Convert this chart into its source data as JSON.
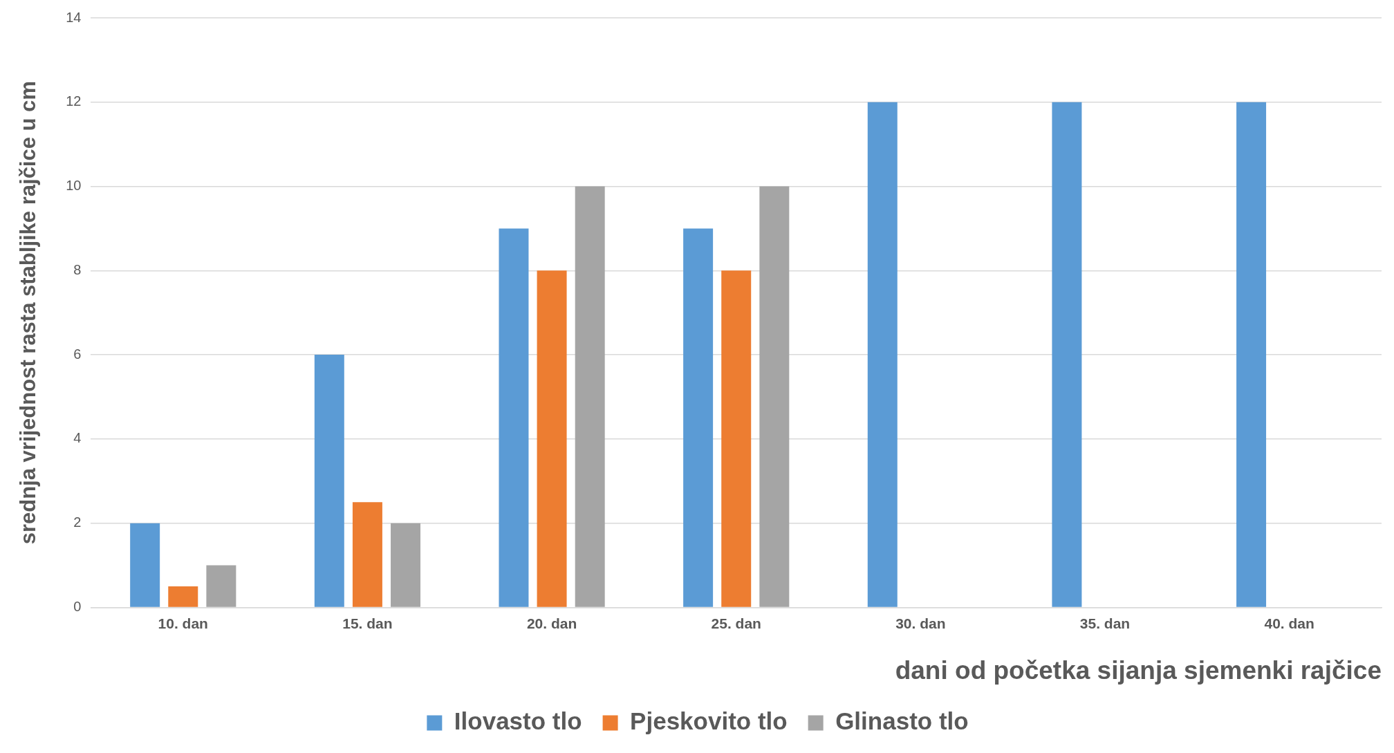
{
  "chart_data": {
    "type": "bar",
    "xlabel": "dani od početka sijanja sjemenki rajčice",
    "ylabel": "srednja vrijednost rasta stabljike rajčice u cm",
    "categories": [
      "10. dan",
      "15. dan",
      "20. dan",
      "25. dan",
      "30. dan",
      "35. dan",
      "40. dan"
    ],
    "series": [
      {
        "name": "Ilovasto tlo",
        "color": "#5b9bd5",
        "values": [
          2,
          6,
          9,
          9,
          12,
          12,
          12
        ]
      },
      {
        "name": "Pjeskovito tlo",
        "color": "#ed7d31",
        "values": [
          0.5,
          2.5,
          8,
          8,
          null,
          null,
          null
        ]
      },
      {
        "name": "Glinasto tlo",
        "color": "#a5a5a5",
        "values": [
          1,
          2,
          10,
          10,
          null,
          null,
          null
        ]
      }
    ],
    "ylim": [
      0,
      14
    ],
    "yticks": [
      0,
      2,
      4,
      6,
      8,
      10,
      12,
      14
    ],
    "grid": "y",
    "legend": "bottom"
  }
}
